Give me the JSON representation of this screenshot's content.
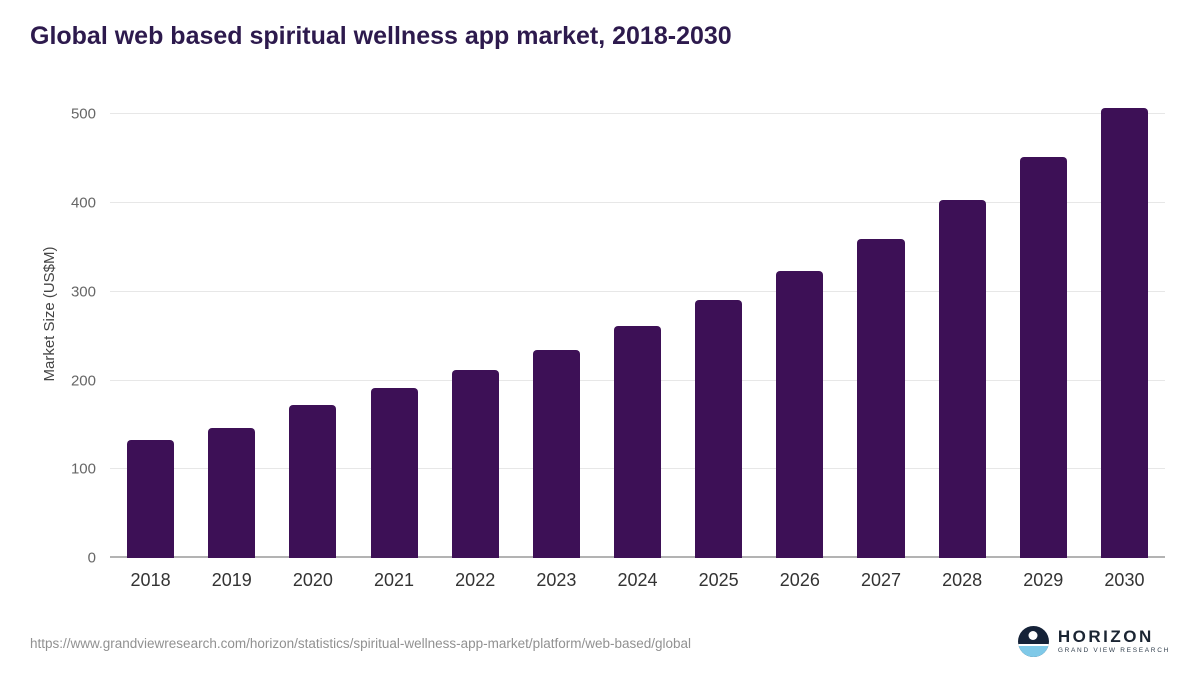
{
  "chart_data": {
    "type": "bar",
    "title": "Global web based spiritual wellness app market, 2018-2030",
    "categories": [
      "2018",
      "2019",
      "2020",
      "2021",
      "2022",
      "2023",
      "2024",
      "2025",
      "2026",
      "2027",
      "2028",
      "2029",
      "2030"
    ],
    "values": [
      133,
      146,
      173,
      192,
      212,
      235,
      261,
      291,
      323,
      360,
      404,
      452,
      507
    ],
    "xlabel": "",
    "ylabel": "Market Size (US$M)",
    "ylim": [
      0,
      550
    ],
    "yticks": [
      0,
      100,
      200,
      300,
      400,
      500
    ],
    "grid": "horizontal",
    "legend": "none",
    "bar_color": "#3d1056"
  },
  "footer": {
    "source_url": "https://www.grandviewresearch.com/horizon/statistics/spiritual-wellness-app-market/platform/web-based/global",
    "logo_title": "HORIZON",
    "logo_subtitle": "GRAND VIEW RESEARCH"
  }
}
